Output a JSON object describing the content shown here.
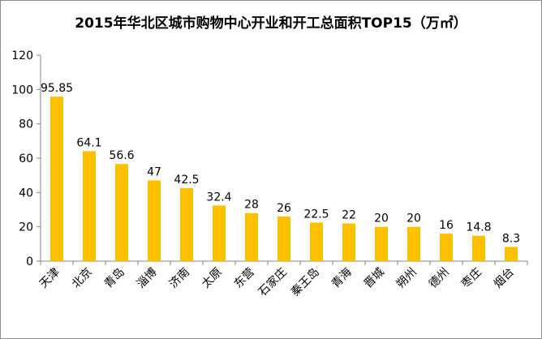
{
  "chart_data": {
    "type": "bar",
    "title": "2015年华北区城市购物中心开业和开工总面积TOP15（万㎡）",
    "categories": [
      "天津",
      "北京",
      "青岛",
      "淄博",
      "济南",
      "太原",
      "东营",
      "石家庄",
      "秦王岛",
      "青海",
      "晋城",
      "朔州",
      "德州",
      "枣庄",
      "烟台"
    ],
    "values": [
      95.85,
      64.1,
      56.6,
      47,
      42.5,
      32.4,
      28,
      26,
      22.5,
      22,
      20,
      20,
      16,
      14.8,
      8.3
    ],
    "data_labels": [
      "95.85",
      "64.1",
      "56.6",
      "47",
      "42.5",
      "32.4",
      "28",
      "26",
      "22.5",
      "22",
      "20",
      "20",
      "16",
      "14.8",
      "8.3"
    ],
    "xlabel": "",
    "ylabel": "",
    "ylim": [
      0,
      120
    ],
    "yticks": [
      0,
      20,
      40,
      60,
      80,
      100,
      120
    ],
    "grid": false,
    "legend": "none",
    "bar_color": "#FFC000",
    "axis_color": "#868686"
  }
}
